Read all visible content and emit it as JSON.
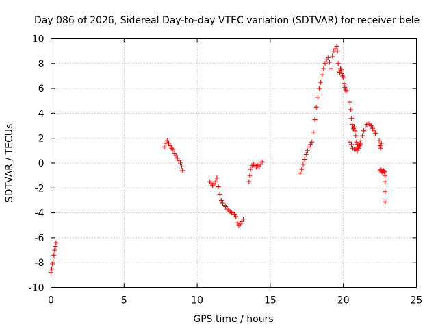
{
  "chart_data": {
    "type": "scatter",
    "title": "Day 086 of 2026, Sidereal Day-to-day VTEC variation (SDTVAR) for receiver bele",
    "xlabel": "GPS time / hours",
    "ylabel": "SDTVAR / TECUs",
    "xlim": [
      0,
      25
    ],
    "ylim": [
      -10,
      10
    ],
    "xticks": [
      0,
      5,
      10,
      15,
      20,
      25
    ],
    "yticks": [
      -10,
      -8,
      -6,
      -4,
      -2,
      0,
      2,
      4,
      6,
      8,
      10
    ],
    "grid": true,
    "marker": "+",
    "series": [
      {
        "name": "SDTVAR",
        "color": "#ff0000",
        "segments": [
          {
            "x": [
              0.0,
              0.05,
              0.1,
              0.15,
              0.2,
              0.25,
              0.3,
              0.35
            ],
            "y": [
              -8.8,
              -8.5,
              -8.1,
              -7.8,
              -7.4,
              -7.0,
              -6.7,
              -6.4
            ]
          },
          {
            "x": [
              7.75,
              7.85,
              7.95,
              8.05,
              8.15,
              8.25,
              8.35,
              8.45,
              8.55,
              8.65,
              8.75,
              8.85,
              8.95,
              9.0
            ],
            "y": [
              1.3,
              1.6,
              1.8,
              1.6,
              1.4,
              1.2,
              1.1,
              0.8,
              0.6,
              0.4,
              0.2,
              0.0,
              -0.3,
              -0.6
            ]
          },
          {
            "x": [
              10.85,
              10.95,
              11.05,
              11.15,
              11.25,
              11.35,
              11.45,
              11.55,
              11.65,
              11.75,
              11.85,
              11.95,
              12.05,
              12.15,
              12.25,
              12.35,
              12.45,
              12.55,
              12.65,
              12.75,
              12.85,
              12.95,
              13.05,
              13.15
            ],
            "y": [
              -1.5,
              -1.6,
              -1.8,
              -1.7,
              -1.5,
              -1.2,
              -1.9,
              -2.5,
              -3.0,
              -3.2,
              -3.4,
              -3.5,
              -3.7,
              -3.8,
              -3.9,
              -4.0,
              -4.0,
              -4.1,
              -4.3,
              -4.8,
              -5.0,
              -4.9,
              -4.7,
              -4.5
            ]
          },
          {
            "x": [
              13.55,
              13.6,
              13.65,
              13.75,
              13.85,
              13.95,
              14.05,
              14.15,
              14.25,
              14.35,
              14.45
            ],
            "y": [
              -1.5,
              -1.0,
              -0.5,
              -0.2,
              -0.1,
              -0.2,
              -0.3,
              -0.2,
              -0.3,
              -0.1,
              0.1
            ]
          },
          {
            "x": [
              17.05,
              17.15,
              17.25,
              17.35,
              17.45,
              17.55,
              17.65,
              17.75,
              17.85,
              17.95,
              18.05,
              18.15,
              18.25,
              18.35,
              18.45,
              18.55,
              18.65,
              18.75,
              18.85,
              18.95,
              19.05,
              19.15,
              19.25,
              19.35,
              19.45,
              19.55,
              19.6,
              19.65,
              19.7,
              19.75,
              19.8,
              19.85,
              19.9,
              19.95,
              20.0,
              20.05,
              20.1,
              20.15,
              20.2
            ],
            "y": [
              -0.8,
              -0.5,
              -0.1,
              0.3,
              0.7,
              1.0,
              1.3,
              1.5,
              1.7,
              2.5,
              3.5,
              4.5,
              5.3,
              6.0,
              6.5,
              7.1,
              7.6,
              8.0,
              8.3,
              8.5,
              8.1,
              7.6,
              8.6,
              9.0,
              9.2,
              9.4,
              9.0,
              8.0,
              7.4,
              7.3,
              7.6,
              7.5,
              7.2,
              7.0,
              6.9,
              6.4,
              6.1,
              5.9,
              5.8
            ]
          },
          {
            "x": [
              20.45,
              20.5,
              20.55,
              20.6,
              20.65,
              20.7,
              20.75,
              20.8,
              20.85,
              20.9,
              20.95,
              21.0,
              21.05,
              21.1,
              21.15,
              21.2,
              21.3,
              21.4,
              21.5,
              21.6,
              21.7,
              21.8,
              21.9,
              22.0,
              22.1,
              22.2
            ],
            "y": [
              4.9,
              4.3,
              3.6,
              3.1,
              2.9,
              2.8,
              2.9,
              2.6,
              2.2,
              1.7,
              1.5,
              1.3,
              1.2,
              1.4,
              1.6,
              1.8,
              2.2,
              2.6,
              2.9,
              3.1,
              3.2,
              3.1,
              3.0,
              2.8,
              2.6,
              2.4
            ]
          },
          {
            "x": [
              20.45,
              20.55,
              20.65,
              20.75,
              20.85,
              20.95,
              21.05,
              21.15
            ],
            "y": [
              1.7,
              1.5,
              1.2,
              1.1,
              1.1,
              1.0,
              1.2,
              1.5
            ]
          },
          {
            "x": [
              22.45,
              22.5,
              22.55,
              22.6
            ],
            "y": [
              1.8,
              1.4,
              1.2,
              1.6
            ]
          },
          {
            "x": [
              22.5,
              22.55,
              22.6,
              22.65,
              22.7,
              22.75,
              22.8,
              22.85,
              22.85,
              22.85,
              22.85
            ],
            "y": [
              -0.6,
              -0.5,
              -0.6,
              -0.7,
              -0.8,
              -0.6,
              -0.7,
              -1.0,
              -1.5,
              -2.3,
              -3.1
            ]
          }
        ]
      }
    ]
  }
}
